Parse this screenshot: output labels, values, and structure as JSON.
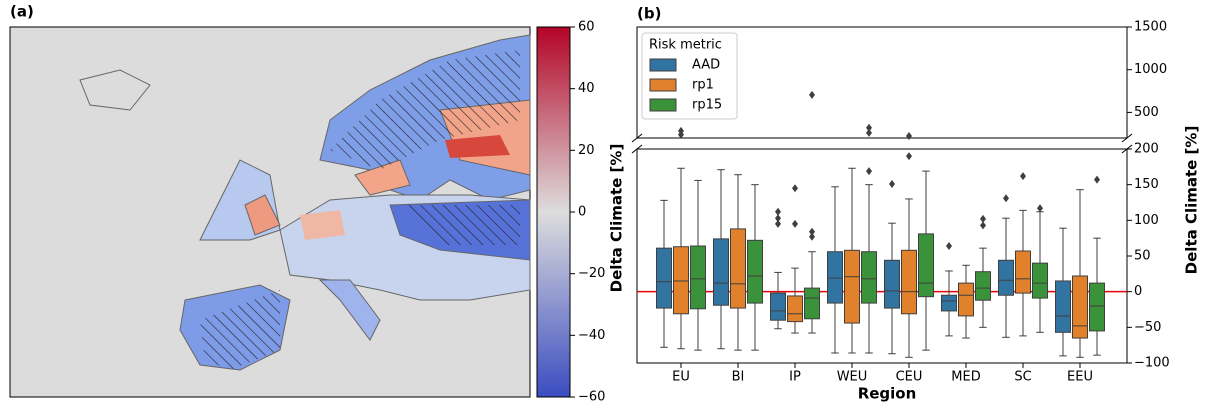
{
  "chart_data": [
    {
      "type": "map",
      "label": "(a)",
      "colormap": [
        "#3b4cc0",
        "#dddddd",
        "#b40426"
      ],
      "clim": [
        -60,
        60
      ],
      "cticks": [
        {
          "value": -60,
          "label": "−60"
        },
        {
          "value": -40,
          "label": "−40"
        },
        {
          "value": -20,
          "label": "−20"
        },
        0,
        20,
        40,
        60
      ]
    },
    {
      "type": "box",
      "label": "(b)",
      "x_label": "Region",
      "y_label": "Delta Climate [%]",
      "y2_label": "Delta Climate [%]",
      "legend_title": "Risk metric",
      "categories": [
        "EU",
        "BI",
        "IP",
        "WEU",
        "CEU",
        "MED",
        "SC",
        "EEU"
      ],
      "ylim": [
        -100,
        200
      ],
      "yticks": [
        {
          "value": -100,
          "label": "−100"
        },
        {
          "value": -50,
          "label": "−50"
        },
        0,
        50,
        100,
        150,
        200
      ],
      "ylim_top": [
        200,
        1500
      ],
      "yticks_top": [
        500,
        1000,
        1500
      ],
      "hline": 0,
      "hline_color": "#e8000b",
      "series": [
        {
          "name": "AAD",
          "color": "#3274a1",
          "whislo": [
            -78,
            -80,
            -52,
            -86,
            -87,
            -62,
            -64,
            -90
          ],
          "q1": [
            -23,
            -19,
            -40,
            -16,
            -23,
            -27,
            -5,
            -57
          ],
          "median": [
            14,
            12,
            -27,
            19,
            1,
            -13,
            16,
            -34
          ],
          "q3": [
            61,
            74,
            -2,
            56,
            44,
            -5,
            44,
            15
          ],
          "whishi": [
            128,
            171,
            27,
            147,
            96,
            29,
            103,
            89
          ],
          "outliers": [
            [],
            [],
            [
              112,
              103,
              95
            ],
            [],
            [
              151
            ],
            [
              64
            ],
            [
              131
            ],
            []
          ]
        },
        {
          "name": "rp1",
          "color": "#e1812c",
          "whislo": [
            -80,
            -82,
            -58,
            -86,
            -92,
            -65,
            -62,
            -92
          ],
          "q1": [
            -31,
            -23,
            -42,
            -44,
            -31,
            -34,
            -2,
            -65
          ],
          "median": [
            15,
            11,
            -31,
            21,
            0,
            -5,
            18,
            -48
          ],
          "q3": [
            63,
            88,
            -6,
            58,
            58,
            12,
            57,
            22
          ],
          "whishi": [
            173,
            164,
            33,
            173,
            130,
            37,
            114,
            143
          ],
          "outliers": [
            [
              283,
              240
            ],
            [],
            [
              145,
              95
            ],
            [],
            [
              223,
              190
            ],
            [],
            [
              162
            ],
            []
          ]
        },
        {
          "name": "rp15",
          "color": "#3a923a",
          "whislo": [
            -82,
            -82,
            -58,
            -86,
            -82,
            -50,
            -57,
            -89
          ],
          "q1": [
            -24,
            -16,
            -38,
            -16,
            -7,
            -12,
            -9,
            -55
          ],
          "median": [
            18,
            22,
            -9,
            18,
            12,
            5,
            12,
            -20
          ],
          "q3": [
            64,
            72,
            5,
            56,
            81,
            28,
            40,
            12
          ],
          "whishi": [
            156,
            150,
            56,
            150,
            169,
            61,
            112,
            75
          ],
          "outliers": [
            [],
            [],
            [
              705,
              84,
              77
            ],
            [
              320,
              260,
              169
            ],
            [],
            [
              102,
              93
            ],
            [
              117
            ],
            [
              157
            ]
          ]
        }
      ]
    }
  ]
}
